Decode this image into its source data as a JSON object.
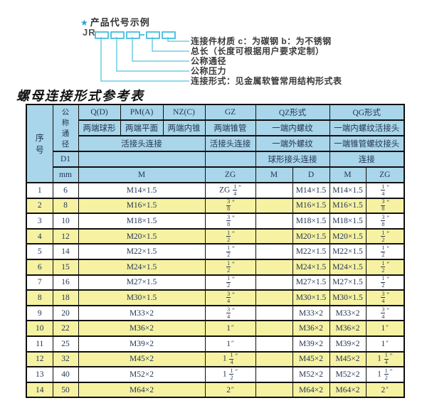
{
  "colors": {
    "accent": "#56c3e0",
    "star": "#29a1d6",
    "header_bg": "#a9d6ea",
    "row_alt_bg": "#f6f2a2",
    "border": "#0f0f0f",
    "text": "#233553"
  },
  "diagram": {
    "star": "★",
    "heading": "产品代号示例",
    "code_prefix": "JR",
    "separator": "—",
    "labels": [
      "连接件材质  c：为碳钢  b：为不锈钢",
      "总长（长度可根据用户要求定制）",
      "公称通径",
      "公称压力",
      "连接形式：见金属软管常用结构形式表"
    ]
  },
  "table": {
    "title": "螺母连接形式参考表",
    "header": {
      "seq": "序号",
      "dn": "公称通径",
      "col_q": "Q(D)",
      "col_pm": "PM(A)",
      "col_nz": "NZ(C)",
      "col_gz": "GZ",
      "col_qz": "QZ形式",
      "col_qg": "QG形式",
      "q_desc": "两端球形",
      "pm_desc": "两端平面",
      "nz_desc": "两端内锥",
      "gz_desc": "两端锥管",
      "qz_desc1": "一端内螺纹",
      "qg_desc1": "一端内螺纹活接头",
      "union_conn": "活接头连接",
      "gz_conn": "活接头连接",
      "qz_desc2": "一端外螺纹",
      "qg_desc2": "一端锥管螺纹接头",
      "d1": "D1",
      "qz_conn": "球形接头连接",
      "qg_conn": "连接",
      "mm": "mm",
      "m": "M",
      "zg": "ZG",
      "qz_m": "M",
      "qz_d": "D",
      "qg_m": "M",
      "qg_zg": "ZG"
    },
    "rows": [
      {
        "seq": "1",
        "dn": "6",
        "m": "M14×1.5",
        "gz": "ZG 1/4″",
        "qz_m": "",
        "qz_d": "M14×1.5",
        "qg_m": "M14×1.5",
        "qg_zg": "1/4″"
      },
      {
        "seq": "2",
        "dn": "8",
        "m": "M16×1.5",
        "gz": "3/8″",
        "qz_m": "",
        "qz_d": "M16×1.5",
        "qg_m": "M16×1.5",
        "qg_zg": "3/8″"
      },
      {
        "seq": "3",
        "dn": "10",
        "m": "M18×1.5",
        "gz": "3/8″",
        "qz_m": "",
        "qz_d": "M18×1.5",
        "qg_m": "M18×1.5",
        "qg_zg": "3/8″"
      },
      {
        "seq": "4",
        "dn": "12",
        "m": "M20×1.5",
        "gz": "1/2″",
        "qz_m": "",
        "qz_d": "M20×1.5",
        "qg_m": "M20×1.5",
        "qg_zg": "1/2″"
      },
      {
        "seq": "5",
        "dn": "14",
        "m": "M22×1.5",
        "gz": "1/2″",
        "qz_m": "",
        "qz_d": "M22×1.5",
        "qg_m": "M22×1.5",
        "qg_zg": "1/2″"
      },
      {
        "seq": "6",
        "dn": "15",
        "m": "M24×1.5",
        "gz": "1/2″",
        "qz_m": "",
        "qz_d": "M24×1.5",
        "qg_m": "M24×1.5",
        "qg_zg": "1/2″"
      },
      {
        "seq": "7",
        "dn": "16",
        "m": "M27×1.5",
        "gz": "1/2″",
        "qz_m": "",
        "qz_d": "M27×1.5",
        "qg_m": "M27×1.5",
        "qg_zg": "1/2″"
      },
      {
        "seq": "8",
        "dn": "18",
        "m": "M30×1.5",
        "gz": "3/4″",
        "qz_m": "",
        "qz_d": "M30×1.5",
        "qg_m": "M30×1.5",
        "qg_zg": "3/4″"
      },
      {
        "seq": "9",
        "dn": "20",
        "m": "M33×2",
        "gz": "3/4″",
        "qz_m": "",
        "qz_d": "M33×2",
        "qg_m": "M33×2",
        "qg_zg": "3/4″"
      },
      {
        "seq": "10",
        "dn": "22",
        "m": "M36×2",
        "gz": "1″",
        "qz_m": "",
        "qz_d": "M36×2",
        "qg_m": "M36×2",
        "qg_zg": "1″"
      },
      {
        "seq": "11",
        "dn": "25",
        "m": "M39×2",
        "gz": "1″",
        "qz_m": "",
        "qz_d": "M39×2",
        "qg_m": "M39×2",
        "qg_zg": "1″"
      },
      {
        "seq": "12",
        "dn": "32",
        "m": "M45×2",
        "gz": "1 1/4″",
        "qz_m": "",
        "qz_d": "M45×2",
        "qg_m": "M45×2",
        "qg_zg": "1 1/4″"
      },
      {
        "seq": "13",
        "dn": "40",
        "m": "M52×2",
        "gz": "1 1/2″",
        "qz_m": "",
        "qz_d": "M52×2",
        "qg_m": "M52×2",
        "qg_zg": "1 1/2″"
      },
      {
        "seq": "14",
        "dn": "50",
        "m": "M64×2",
        "gz": "2″",
        "qz_m": "",
        "qz_d": "M64×2",
        "qg_m": "M64×2",
        "qg_zg": "2″"
      }
    ]
  }
}
